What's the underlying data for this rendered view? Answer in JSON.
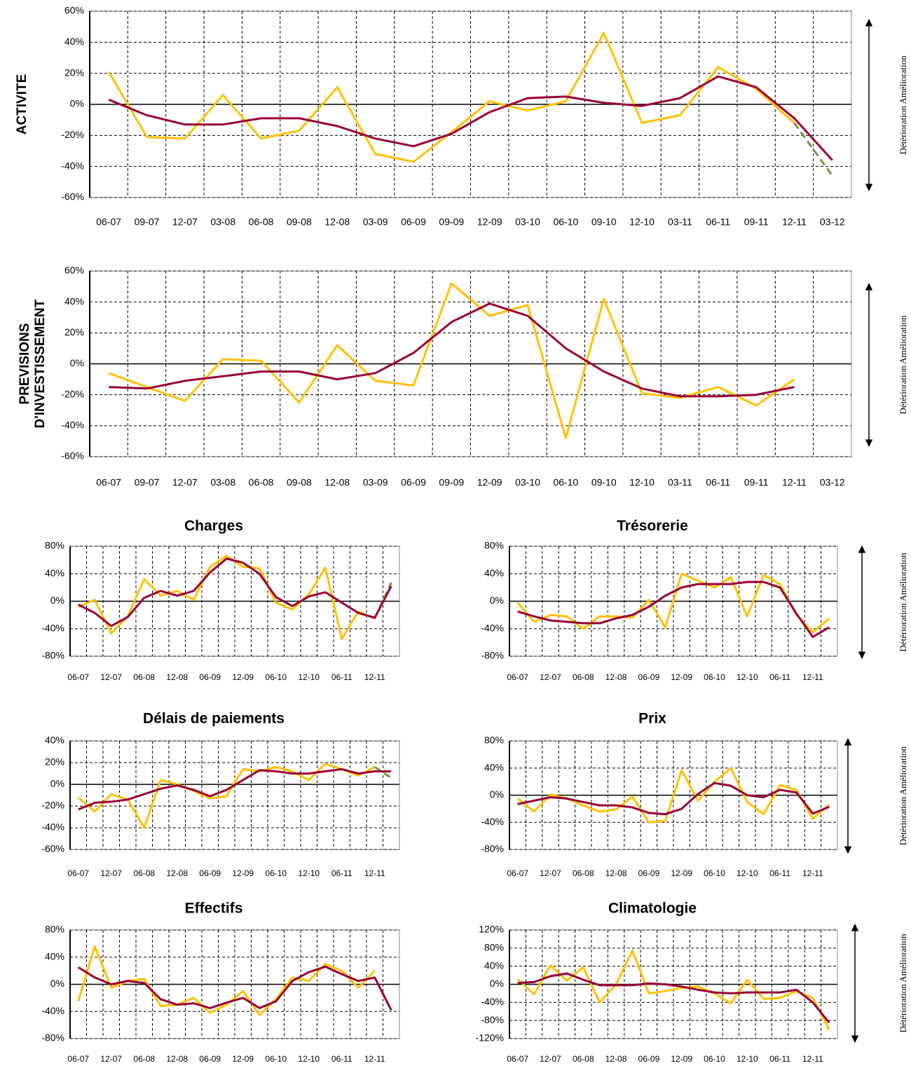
{
  "chart_data": [
    {
      "type": "line",
      "y_label": "ACTIVITE",
      "side_label": "Détérioration Amélioration",
      "grid": true,
      "categories": [
        "06-07",
        "09-07",
        "12-07",
        "03-08",
        "06-08",
        "09-08",
        "12-08",
        "03-09",
        "06-09",
        "09-09",
        "12-09",
        "03-10",
        "06-10",
        "09-10",
        "12-10",
        "03-11",
        "06-11",
        "09-11",
        "12-11",
        "03-12"
      ],
      "series": [
        {
          "color": "#ffc000",
          "values": [
            21,
            -21,
            -22,
            6,
            -22,
            -17,
            11,
            -32,
            -37,
            -18,
            2,
            -4,
            2,
            46,
            -12,
            -7,
            24,
            10,
            -12,
            null
          ]
        },
        {
          "color": "#77933c",
          "dashed": true,
          "values": [
            null,
            null,
            null,
            null,
            null,
            null,
            null,
            null,
            null,
            null,
            null,
            null,
            null,
            null,
            null,
            null,
            null,
            null,
            -12,
            -46
          ]
        },
        {
          "color": "#990033",
          "values": [
            3,
            -7,
            -13,
            -13,
            -9,
            -9,
            -14,
            -22,
            -27,
            -19,
            -5,
            4,
            5,
            1,
            -1,
            4,
            18,
            11,
            -9,
            -36
          ]
        }
      ],
      "ylim": [
        -60,
        60
      ],
      "yticks": [
        {
          "value": 60,
          "label": "60%"
        },
        {
          "value": 40,
          "label": "40%"
        },
        {
          "value": 20,
          "label": "20%"
        },
        {
          "value": 0,
          "label": "0%"
        },
        {
          "value": -20,
          "label": "-20%"
        },
        {
          "value": -40,
          "label": "-40%"
        },
        {
          "value": -60,
          "label": "-60%"
        }
      ]
    },
    {
      "type": "line",
      "y_label": [
        "PREVISIONS",
        "D'INVESTISSEMENT"
      ],
      "side_label": "Détérioration Amélioration",
      "grid": true,
      "categories": [
        "06-07",
        "09-07",
        "12-07",
        "03-08",
        "06-08",
        "09-08",
        "12-08",
        "03-09",
        "06-09",
        "09-09",
        "12-09",
        "03-10",
        "06-10",
        "09-10",
        "12-10",
        "03-11",
        "06-11",
        "09-11",
        "12-11",
        "03-12"
      ],
      "series": [
        {
          "color": "#ffc000",
          "values": [
            -6,
            -15,
            -24,
            3,
            2,
            -25,
            12,
            -11,
            -14,
            52,
            31,
            38,
            -48,
            42,
            -19,
            -22,
            -15,
            -27,
            -10,
            null
          ]
        },
        {
          "color": "#990033",
          "values": [
            -15,
            -16,
            -11,
            -8,
            -5,
            -5,
            -10,
            -6,
            7,
            27,
            39,
            31,
            10,
            -5,
            -16,
            -21,
            -21,
            -20,
            -15,
            null
          ]
        }
      ],
      "ylim": [
        -60,
        60
      ],
      "yticks": [
        {
          "value": 60,
          "label": "60%"
        },
        {
          "value": 40,
          "label": "40%"
        },
        {
          "value": 20,
          "label": "20%"
        },
        {
          "value": 0,
          "label": "0%"
        },
        {
          "value": -20,
          "label": "-20%"
        },
        {
          "value": -40,
          "label": "-40%"
        },
        {
          "value": -60,
          "label": "-60%"
        }
      ]
    },
    {
      "type": "line",
      "title": "Charges",
      "grid": true,
      "categories": [
        "06-07",
        null,
        "12-07",
        null,
        "06-08",
        null,
        "12-08",
        null,
        "06-09",
        null,
        "12-09",
        null,
        "06-10",
        null,
        "12-10",
        null,
        "06-11",
        null,
        "12-11",
        null
      ],
      "series": [
        {
          "color": "#ffc000",
          "values": [
            -8,
            2,
            -47,
            -22,
            32,
            8,
            15,
            2,
            50,
            66,
            50,
            48,
            -2,
            -12,
            10,
            49,
            -55,
            -15,
            -25,
            null
          ]
        },
        {
          "color": "#77933c",
          "dashed": true,
          "values": [
            null,
            null,
            null,
            null,
            null,
            null,
            null,
            null,
            null,
            null,
            null,
            null,
            null,
            null,
            null,
            null,
            null,
            null,
            -25,
            27
          ]
        },
        {
          "color": "#990033",
          "values": [
            -5,
            -17,
            -36,
            -23,
            5,
            15,
            8,
            15,
            42,
            62,
            56,
            40,
            6,
            -7,
            7,
            13,
            -2,
            -17,
            -24,
            22
          ]
        }
      ],
      "ylim": [
        -80,
        80
      ],
      "yticks": [
        {
          "value": 80,
          "label": "80%"
        },
        {
          "value": 40,
          "label": "40%"
        },
        {
          "value": 0,
          "label": "0%"
        },
        {
          "value": -40,
          "label": "-40%"
        },
        {
          "value": -80,
          "label": "-80%"
        }
      ]
    },
    {
      "type": "line",
      "title": "Trésorerie",
      "side_label": "Détérioration Amélioration",
      "grid": true,
      "categories": [
        "06-07",
        null,
        "12-07",
        null,
        "06-08",
        null,
        "12-08",
        null,
        "06-09",
        null,
        "12-09",
        null,
        "06-10",
        null,
        "12-10",
        null,
        "06-11",
        null,
        "12-11",
        null
      ],
      "series": [
        {
          "color": "#ffc000",
          "values": [
            -2,
            -30,
            -20,
            -22,
            -40,
            -22,
            -22,
            -24,
            2,
            -38,
            40,
            30,
            20,
            35,
            -22,
            38,
            25,
            -20,
            -45,
            -25
          ]
        },
        {
          "color": "#990033",
          "values": [
            -15,
            -22,
            -28,
            -30,
            -32,
            -32,
            -25,
            -20,
            -8,
            8,
            20,
            25,
            25,
            25,
            28,
            28,
            20,
            -18,
            -52,
            -38
          ]
        }
      ],
      "ylim": [
        -80,
        80
      ],
      "yticks": [
        {
          "value": 80,
          "label": "80%"
        },
        {
          "value": 40,
          "label": "40%"
        },
        {
          "value": 0,
          "label": "0%"
        },
        {
          "value": -40,
          "label": "-40%"
        },
        {
          "value": -80,
          "label": "-80%"
        }
      ]
    },
    {
      "type": "line",
      "title": "Délais de paiements",
      "grid": true,
      "categories": [
        "06-07",
        null,
        "12-07",
        null,
        "06-08",
        null,
        "12-08",
        null,
        "06-09",
        null,
        "12-09",
        null,
        "06-10",
        null,
        "12-10",
        null,
        "06-11",
        null,
        "12-11",
        null
      ],
      "series": [
        {
          "color": "#ffc000",
          "values": [
            -12,
            -25,
            -9,
            -14,
            -40,
            4,
            0,
            -6,
            -13,
            -11,
            14,
            12,
            16,
            12,
            4,
            19,
            14,
            8,
            16,
            null
          ]
        },
        {
          "color": "#77933c",
          "dashed": true,
          "values": [
            null,
            null,
            null,
            null,
            null,
            null,
            null,
            null,
            null,
            null,
            null,
            null,
            null,
            null,
            null,
            null,
            null,
            null,
            16,
            6
          ]
        },
        {
          "color": "#990033",
          "values": [
            -23,
            -17,
            -16,
            -14,
            -9,
            -4,
            -1,
            -5,
            -11,
            -5,
            4,
            13,
            12,
            10,
            10,
            12,
            14,
            10,
            12,
            12
          ]
        }
      ],
      "ylim": [
        -60,
        40
      ],
      "yticks": [
        {
          "value": 40,
          "label": "40%"
        },
        {
          "value": 20,
          "label": "20%"
        },
        {
          "value": 0,
          "label": "0%"
        },
        {
          "value": -20,
          "label": "-20%"
        },
        {
          "value": -40,
          "label": "-40%"
        },
        {
          "value": -60,
          "label": "-60%"
        }
      ]
    },
    {
      "type": "line",
      "title": "Prix",
      "side_label": "Détérioration Amélioration",
      "grid": true,
      "categories": [
        "06-07",
        null,
        "12-07",
        null,
        "06-08",
        null,
        "12-08",
        null,
        "06-09",
        null,
        "12-09",
        null,
        "06-10",
        null,
        "12-10",
        null,
        "06-11",
        null,
        "12-11",
        null
      ],
      "series": [
        {
          "color": "#ffc000",
          "values": [
            -5,
            -24,
            1,
            -5,
            -15,
            -24,
            -21,
            -2,
            -40,
            -38,
            37,
            -8,
            20,
            40,
            -10,
            -28,
            15,
            8,
            -35,
            -14
          ]
        },
        {
          "color": "#990033",
          "values": [
            -13,
            -8,
            -3,
            -5,
            -10,
            -15,
            -15,
            -18,
            -26,
            -28,
            -20,
            2,
            18,
            14,
            0,
            -3,
            8,
            4,
            -27,
            -17
          ]
        }
      ],
      "ylim": [
        -80,
        80
      ],
      "yticks": [
        {
          "value": 80,
          "label": "80%"
        },
        {
          "value": 40,
          "label": "40%"
        },
        {
          "value": 0,
          "label": "0%"
        },
        {
          "value": -40,
          "label": "-40%"
        },
        {
          "value": -80,
          "label": "-80%"
        }
      ]
    },
    {
      "type": "line",
      "title": "Effectifs",
      "grid": true,
      "categories": [
        "06-07",
        null,
        "12-07",
        null,
        "06-08",
        null,
        "12-08",
        null,
        "06-09",
        null,
        "12-09",
        null,
        "06-10",
        null,
        "12-10",
        null,
        "06-11",
        null,
        "12-11",
        null
      ],
      "series": [
        {
          "color": "#ffc000",
          "values": [
            -25,
            56,
            -5,
            5,
            8,
            -32,
            -30,
            -20,
            -42,
            -30,
            -10,
            -45,
            -22,
            10,
            5,
            30,
            20,
            -5,
            20,
            null
          ]
        },
        {
          "color": "#990033",
          "values": [
            25,
            10,
            0,
            5,
            2,
            -22,
            -30,
            -28,
            -35,
            -27,
            -20,
            -35,
            -25,
            5,
            18,
            26,
            15,
            5,
            10,
            -38
          ]
        }
      ],
      "ylim": [
        -80,
        80
      ],
      "yticks": [
        {
          "value": 80,
          "label": "80%"
        },
        {
          "value": 40,
          "label": "40%"
        },
        {
          "value": 0,
          "label": "0%"
        },
        {
          "value": -40,
          "label": "-40%"
        },
        {
          "value": -80,
          "label": "-80%"
        }
      ]
    },
    {
      "type": "line",
      "title": "Climatologie",
      "side_label": "Détérioration Amélioration",
      "grid": true,
      "categories": [
        "06-07",
        null,
        "12-07",
        null,
        "06-08",
        null,
        "12-08",
        null,
        "06-09",
        null,
        "12-09",
        null,
        "06-10",
        null,
        "12-10",
        null,
        "06-11",
        null,
        "12-11",
        null
      ],
      "series": [
        {
          "color": "#ffc000",
          "values": [
            12,
            -22,
            42,
            8,
            38,
            -40,
            0,
            75,
            -20,
            -15,
            -8,
            -5,
            -20,
            -42,
            10,
            -32,
            -30,
            -15,
            -30,
            -100
          ]
        },
        {
          "color": "#990033",
          "values": [
            3,
            5,
            18,
            24,
            10,
            -2,
            -2,
            -2,
            2,
            0,
            -5,
            -12,
            -18,
            -20,
            -18,
            -18,
            -18,
            -12,
            -40,
            -85
          ]
        }
      ],
      "ylim": [
        -120,
        120
      ],
      "yticks": [
        {
          "value": 120,
          "label": "120%"
        },
        {
          "value": 80,
          "label": "80%"
        },
        {
          "value": 40,
          "label": "40%"
        },
        {
          "value": 0,
          "label": "0%"
        },
        {
          "value": -40,
          "label": "-40%"
        },
        {
          "value": -80,
          "label": "-80%"
        },
        {
          "value": -120,
          "label": "-120%"
        }
      ]
    }
  ]
}
